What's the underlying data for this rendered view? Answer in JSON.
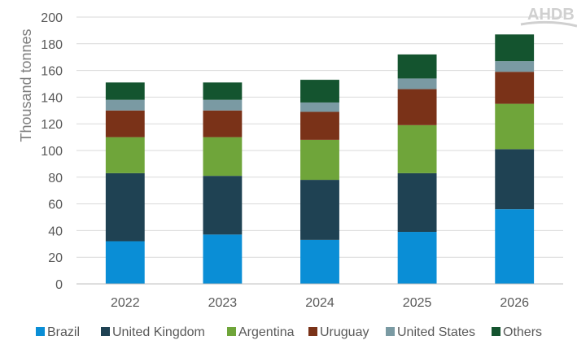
{
  "logo": {
    "text": "AHDB"
  },
  "chart_data": {
    "type": "bar",
    "stacked": true,
    "ylabel": "Thousand tonnes",
    "xlabel": "",
    "ylim": [
      0,
      200
    ],
    "yticks": [
      0,
      20,
      40,
      60,
      80,
      100,
      120,
      140,
      160,
      180,
      200
    ],
    "grid": true,
    "legend_position": "bottom",
    "categories": [
      "2022",
      "2023",
      "2024",
      "2025",
      "2026"
    ],
    "series": [
      {
        "name": "Brazil",
        "color": "#0a8ed6",
        "values": [
          32,
          37,
          33,
          39,
          56
        ]
      },
      {
        "name": "United Kingdom",
        "color": "#1f4253",
        "values": [
          51,
          44,
          45,
          44,
          45
        ]
      },
      {
        "name": "Argentina",
        "color": "#6fa53a",
        "values": [
          27,
          29,
          30,
          36,
          34
        ]
      },
      {
        "name": "Uruguay",
        "color": "#7a3218",
        "values": [
          20,
          20,
          21,
          27,
          24
        ]
      },
      {
        "name": "United States",
        "color": "#7a9aa3",
        "values": [
          8,
          8,
          7,
          8,
          8
        ]
      },
      {
        "name": "Others",
        "color": "#14542f",
        "values": [
          13,
          13,
          17,
          18,
          20
        ]
      }
    ]
  }
}
